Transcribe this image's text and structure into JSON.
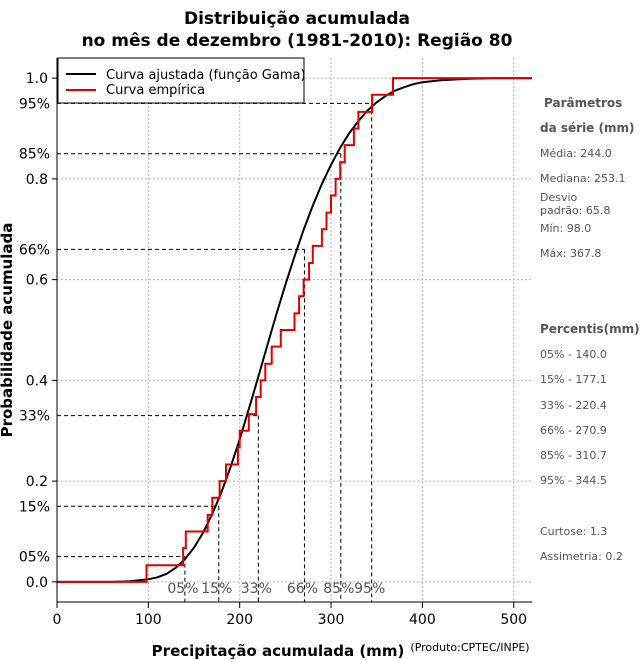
{
  "chart_data": {
    "type": "line",
    "title_line1": "Distribuição acumulada",
    "title_line2": "no mês de dezembro (1981-2010): Região 80",
    "xlabel": "Precipitação acumulada (mm)",
    "ylabel": "Probabilidade acumulada",
    "credit": "(Produto:CPTEC/INPE)",
    "xlim": [
      0,
      520
    ],
    "ylim": [
      -0.04,
      1.04
    ],
    "x_ticks": [
      0,
      100,
      200,
      300,
      400,
      500
    ],
    "y_ticks": [
      0.0,
      0.2,
      0.4,
      0.6,
      0.8,
      1.0
    ],
    "y_tick_labels": [
      "0.0",
      "0.2",
      "0.4",
      "0.6",
      "0.8",
      "1.0"
    ],
    "legend": {
      "position": "top-left",
      "fitted_label": "Curva ajustada (função Gama)",
      "empirical_label": "Curva empírica",
      "fitted_color": "#000000",
      "empirical_color": "#e00000"
    },
    "fitted_curve": {
      "name": "Curva ajustada (função Gama)",
      "color": "#000000",
      "x": [
        0,
        60,
        80,
        100,
        110,
        120,
        130,
        140,
        150,
        160,
        170,
        180,
        190,
        200,
        210,
        220,
        230,
        240,
        250,
        260,
        270,
        280,
        290,
        300,
        310,
        320,
        330,
        340,
        350,
        360,
        370,
        380,
        390,
        400,
        420,
        450,
        480,
        520
      ],
      "y": [
        0,
        0.0,
        0.001,
        0.005,
        0.009,
        0.016,
        0.028,
        0.045,
        0.068,
        0.098,
        0.135,
        0.178,
        0.228,
        0.283,
        0.343,
        0.405,
        0.468,
        0.53,
        0.59,
        0.646,
        0.699,
        0.747,
        0.79,
        0.828,
        0.862,
        0.891,
        0.915,
        0.936,
        0.952,
        0.965,
        0.975,
        0.982,
        0.988,
        0.992,
        0.996,
        0.999,
        1.0,
        1.0
      ]
    },
    "empirical_curve": {
      "name": "Curva empírica",
      "color": "#e00000",
      "x": [
        98.0,
        138,
        141,
        165,
        170,
        178,
        185,
        198,
        200,
        210,
        218,
        223,
        228,
        235,
        245,
        260,
        265,
        270,
        276,
        280,
        290,
        295,
        300,
        305,
        310,
        315,
        325,
        330,
        345,
        367.8
      ],
      "y": [
        0.033,
        0.067,
        0.1,
        0.133,
        0.167,
        0.2,
        0.233,
        0.267,
        0.3,
        0.333,
        0.367,
        0.4,
        0.433,
        0.467,
        0.5,
        0.533,
        0.567,
        0.6,
        0.633,
        0.667,
        0.7,
        0.733,
        0.767,
        0.8,
        0.833,
        0.867,
        0.9,
        0.933,
        0.967,
        1.0
      ]
    },
    "percentile_guides": [
      {
        "label": "05%",
        "p": 0.05,
        "value": 140.0
      },
      {
        "label": "15%",
        "p": 0.15,
        "value": 177.1
      },
      {
        "label": "33%",
        "p": 0.33,
        "value": 220.4
      },
      {
        "label": "66%",
        "p": 0.66,
        "value": 270.9
      },
      {
        "label": "85%",
        "p": 0.85,
        "value": 310.7
      },
      {
        "label": "95%",
        "p": 0.95,
        "value": 344.5
      }
    ],
    "side_panel": {
      "params_head_1": "Parâmetros",
      "params_head_2": "da série (mm)",
      "media": "Média: 244.0",
      "mediana": "Mediana: 253.1",
      "desvio_1": "Desvio",
      "desvio_2": "padrão: 65.8",
      "min": "Mín: 98.0",
      "max": "Máx: 367.8",
      "percentis_head": "Percentis(mm)",
      "p05": "05% - 140.0",
      "p15": "15% - 177.1",
      "p33": "33% - 220.4",
      "p66": "66% - 270.9",
      "p85": "85% - 310.7",
      "p95": "95% - 344.5",
      "curtose": "Curtose: 1.3",
      "assimetria": "Assimetria: 0.2"
    }
  }
}
